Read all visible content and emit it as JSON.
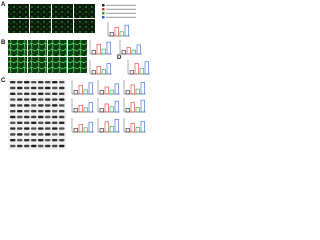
{
  "panels": [
    {
      "label": "A"
    },
    {
      "label": "B"
    },
    {
      "label": "C"
    },
    {
      "label": "D"
    }
  ],
  "legend_colors": [
    "#222222",
    "#d9342b",
    "#2e9e3a",
    "#2b5fd9"
  ],
  "charts": [
    {
      "values": [
        1,
        2.4,
        1.2,
        3.1
      ],
      "ylim": [
        0,
        4
      ]
    },
    {
      "values": [
        1,
        2.8,
        1.4,
        3.4
      ],
      "ylim": [
        0,
        4
      ]
    },
    {
      "values": [
        1,
        1.8,
        1.1,
        2.6
      ],
      "ylim": [
        0,
        4
      ]
    },
    {
      "values": [
        1,
        2.2,
        1.3,
        3.0
      ],
      "ylim": [
        0,
        4
      ]
    },
    {
      "values": [
        1,
        3.0,
        1.6,
        3.5
      ],
      "ylim": [
        0,
        4
      ]
    },
    {
      "values": [
        1,
        2.5,
        1.2,
        3.2
      ],
      "ylim": [
        0,
        4
      ]
    },
    {
      "values": [
        1,
        2.0,
        1.1,
        2.9
      ],
      "ylim": [
        0,
        4
      ]
    },
    {
      "values": [
        1,
        2.6,
        1.4,
        3.3
      ],
      "ylim": [
        0,
        4
      ]
    },
    {
      "values": [
        1,
        1.9,
        1.2,
        2.7
      ],
      "ylim": [
        0,
        4
      ]
    },
    {
      "values": [
        1,
        2.3,
        1.5,
        3.1
      ],
      "ylim": [
        0,
        4
      ]
    },
    {
      "values": [
        1,
        2.7,
        1.3,
        3.4
      ],
      "ylim": [
        0,
        4
      ]
    },
    {
      "values": [
        1,
        2.1,
        1.2,
        2.8
      ],
      "ylim": [
        0,
        4
      ]
    },
    {
      "values": [
        1,
        2.9,
        1.6,
        3.6
      ],
      "ylim": [
        0,
        4
      ]
    },
    {
      "values": [
        1,
        2.4,
        1.3,
        3.0
      ],
      "ylim": [
        0,
        4
      ]
    }
  ]
}
